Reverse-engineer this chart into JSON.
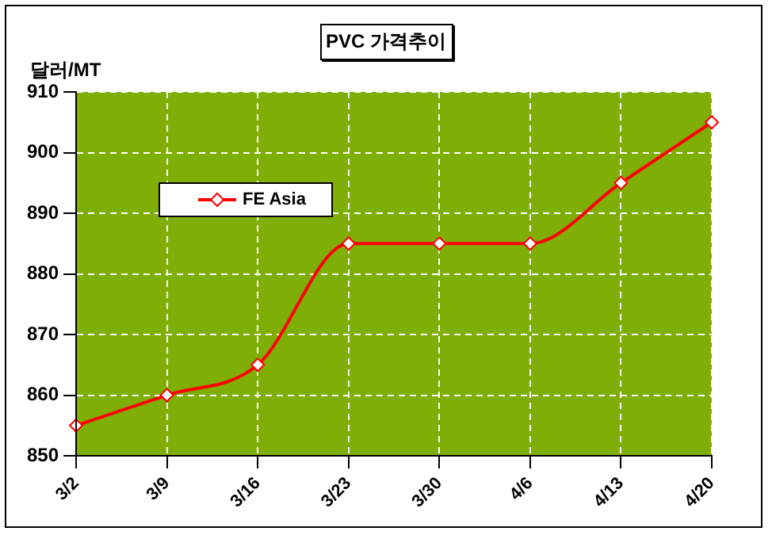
{
  "chart_data": {
    "type": "line",
    "title": "PVC 가격추이",
    "ylabel": "달러/MT",
    "categories": [
      "3/2",
      "3/9",
      "3/16",
      "3/23",
      "3/30",
      "4/6",
      "4/13",
      "4/20"
    ],
    "series": [
      {
        "name": "FE Asia",
        "color": "#ff0000",
        "values": [
          855,
          860,
          865,
          885,
          885,
          885,
          895,
          905
        ]
      }
    ],
    "ylim": [
      850,
      910
    ],
    "yticks": [
      850,
      860,
      870,
      880,
      890,
      900,
      910
    ],
    "grid": true,
    "legend": "top left",
    "marker": "diamond",
    "line_style": "solid"
  }
}
